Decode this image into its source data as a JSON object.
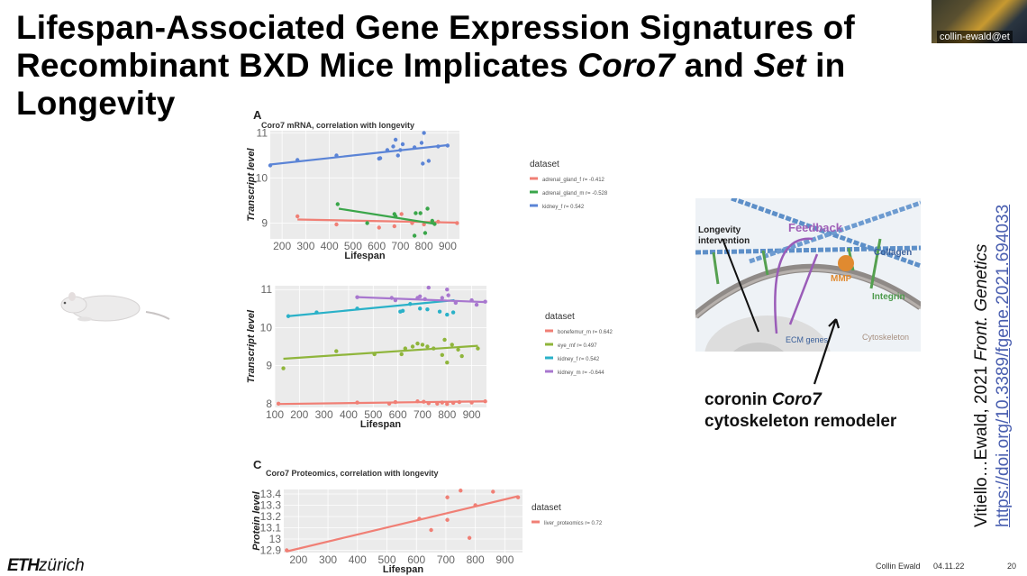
{
  "slide": {
    "title_line1": "Lifespan-Associated Gene Expression Signatures of",
    "title_line2_a": "Recombinant BXD Mice Implicates ",
    "title_line2_gene1": "Coro7",
    "title_line2_b": " and ",
    "title_line2_gene2": "Set",
    "title_line2_c": " in",
    "title_line3": "Longevity",
    "webcam_label": "collin-ewald@et",
    "panel_a": "A",
    "panel_c": "C",
    "caption_line1_a": "coronin ",
    "caption_line1_gene": "Coro7",
    "caption_line2": "cytoskeleton remodeler",
    "citation_a": "Vitiello…Ewald, 2021 ",
    "citation_journal": "Front. Genetics",
    "citation_url": "https://doi.org/10.3389/fgene.2021.694033",
    "logo_eth": "ETH",
    "logo_zurich": "zürich",
    "footer_author": "Collin Ewald",
    "footer_date": "04.11.22",
    "footer_page": "20"
  },
  "diagram": {
    "labels": {
      "intervention": "Longevity intervention",
      "feedback": "Feedback",
      "collagen": "Collagen",
      "mmp": "MMP",
      "integrin": "Integrin",
      "ecm": "ECM genes",
      "cytoskeleton": "Cytoskeleton"
    }
  },
  "chart_data": [
    {
      "type": "scatter",
      "title": "Coro7 mRNA, correlation with longevity",
      "xlabel": "Lifespan",
      "ylabel": "Transcript level",
      "xlim": [
        150,
        950
      ],
      "ylim": [
        8.65,
        11.05
      ],
      "xticks": [
        200,
        300,
        400,
        500,
        600,
        700,
        800,
        900
      ],
      "yticks": [
        9,
        10,
        11
      ],
      "legend_title": "dataset",
      "legend_position": "right",
      "grid": true,
      "series": [
        {
          "name": "adrenal_gland_f r= -0.412",
          "color": "#f07f75",
          "points": [
            [
              265,
              9.15
            ],
            [
              430,
              8.97
            ],
            [
              610,
              8.9
            ],
            [
              675,
              8.93
            ],
            [
              705,
              9.2
            ],
            [
              750,
              9.0
            ],
            [
              800,
              8.97
            ],
            [
              860,
              9.03
            ],
            [
              940,
              9.0
            ]
          ],
          "fit": [
            [
              265,
              9.08
            ],
            [
              940,
              9.01
            ]
          ]
        },
        {
          "name": "adrenal_gland_m r= -0.528",
          "color": "#3aa64a",
          "points": [
            [
              435,
              9.42
            ],
            [
              560,
              9.0
            ],
            [
              675,
              9.2
            ],
            [
              680,
              9.15
            ],
            [
              760,
              8.72
            ],
            [
              765,
              9.22
            ],
            [
              785,
              9.22
            ],
            [
              805,
              8.78
            ],
            [
              815,
              9.32
            ],
            [
              835,
              9.05
            ],
            [
              845,
              8.98
            ]
          ],
          "fit": [
            [
              440,
              9.32
            ],
            [
              850,
              8.98
            ]
          ]
        },
        {
          "name": "kidney_f r= 0.542",
          "color": "#5b84d6",
          "points": [
            [
              150,
              10.28
            ],
            [
              265,
              10.4
            ],
            [
              430,
              10.5
            ],
            [
              610,
              10.43
            ],
            [
              615,
              10.44
            ],
            [
              645,
              10.62
            ],
            [
              670,
              10.7
            ],
            [
              680,
              10.85
            ],
            [
              690,
              10.5
            ],
            [
              700,
              10.62
            ],
            [
              710,
              10.75
            ],
            [
              760,
              10.68
            ],
            [
              790,
              10.78
            ],
            [
              800,
              11.0
            ],
            [
              795,
              10.32
            ],
            [
              820,
              10.38
            ],
            [
              860,
              10.7
            ],
            [
              900,
              10.72
            ]
          ],
          "fit": [
            [
              150,
              10.3
            ],
            [
              900,
              10.73
            ]
          ]
        }
      ]
    },
    {
      "type": "scatter",
      "title": "",
      "xlabel": "Lifespan",
      "ylabel": "Transcript level",
      "xlim": [
        100,
        960
      ],
      "ylim": [
        7.9,
        11.1
      ],
      "xticks": [
        100,
        200,
        300,
        400,
        500,
        600,
        700,
        800,
        900
      ],
      "yticks": [
        8,
        9,
        10,
        11
      ],
      "legend_title": "dataset",
      "legend_position": "right",
      "grid": true,
      "series": [
        {
          "name": "bonefemur_m r= 0.642",
          "color": "#f07f75",
          "points": [
            [
              115,
              8.0
            ],
            [
              435,
              8.03
            ],
            [
              565,
              8.0
            ],
            [
              590,
              8.04
            ],
            [
              680,
              8.06
            ],
            [
              705,
              8.05
            ],
            [
              725,
              8.01
            ],
            [
              760,
              8.0
            ],
            [
              780,
              8.03
            ],
            [
              800,
              7.99
            ],
            [
              825,
              8.02
            ],
            [
              850,
              8.04
            ],
            [
              900,
              8.03
            ],
            [
              955,
              8.06
            ]
          ],
          "fit": [
            [
              115,
              7.99
            ],
            [
              955,
              8.06
            ]
          ]
        },
        {
          "name": "eye_mf r= 0.497",
          "color": "#8fb53b",
          "points": [
            [
              135,
              8.93
            ],
            [
              350,
              9.38
            ],
            [
              505,
              9.3
            ],
            [
              615,
              9.3
            ],
            [
              630,
              9.45
            ],
            [
              660,
              9.5
            ],
            [
              680,
              9.58
            ],
            [
              700,
              9.55
            ],
            [
              720,
              9.5
            ],
            [
              745,
              9.45
            ],
            [
              780,
              9.28
            ],
            [
              790,
              9.68
            ],
            [
              800,
              9.08
            ],
            [
              820,
              9.55
            ],
            [
              845,
              9.42
            ],
            [
              860,
              9.25
            ],
            [
              925,
              9.45
            ]
          ],
          "fit": [
            [
              135,
              9.18
            ],
            [
              925,
              9.52
            ]
          ]
        },
        {
          "name": "kidney_f r= 0.542",
          "color": "#2ab1c8",
          "points": [
            [
              155,
              10.3
            ],
            [
              270,
              10.4
            ],
            [
              435,
              10.5
            ],
            [
              610,
              10.42
            ],
            [
              620,
              10.44
            ],
            [
              650,
              10.62
            ],
            [
              690,
              10.5
            ],
            [
              720,
              10.48
            ],
            [
              770,
              10.42
            ],
            [
              800,
              10.34
            ],
            [
              825,
              10.4
            ]
          ],
          "fit": [
            [
              155,
              10.3
            ],
            [
              830,
              10.72
            ]
          ]
        },
        {
          "name": "kidney_m r= -0.644",
          "color": "#a877cf",
          "points": [
            [
              435,
              10.8
            ],
            [
              575,
              10.78
            ],
            [
              590,
              10.72
            ],
            [
              680,
              10.78
            ],
            [
              690,
              10.82
            ],
            [
              710,
              10.75
            ],
            [
              725,
              11.05
            ],
            [
              780,
              10.78
            ],
            [
              800,
              11.0
            ],
            [
              805,
              10.85
            ],
            [
              835,
              10.65
            ],
            [
              900,
              10.72
            ],
            [
              920,
              10.6
            ],
            [
              955,
              10.68
            ]
          ],
          "fit": [
            [
              435,
              10.8
            ],
            [
              955,
              10.67
            ]
          ]
        }
      ]
    },
    {
      "type": "scatter",
      "title": "Coro7 Proteomics, correlation with longevity",
      "xlabel": "Lifespan",
      "ylabel": "Protein level",
      "xlim": [
        150,
        960
      ],
      "ylim": [
        12.88,
        13.44
      ],
      "xticks": [
        200,
        300,
        400,
        500,
        600,
        700,
        800,
        900
      ],
      "yticks": [
        12.9,
        13.0,
        13.1,
        13.2,
        13.3,
        13.4
      ],
      "legend_title": "dataset",
      "legend_position": "right",
      "grid": true,
      "series": [
        {
          "name": "liver_proteomics r= 0.72",
          "color": "#f07f75",
          "points": [
            [
              160,
              12.9
            ],
            [
              610,
              13.18
            ],
            [
              650,
              13.08
            ],
            [
              705,
              13.37
            ],
            [
              705,
              13.17
            ],
            [
              750,
              13.43
            ],
            [
              780,
              13.01
            ],
            [
              800,
              13.3
            ],
            [
              860,
              13.42
            ],
            [
              945,
              13.37
            ]
          ],
          "fit": [
            [
              160,
              12.89
            ],
            [
              945,
              13.38
            ]
          ]
        }
      ]
    }
  ]
}
